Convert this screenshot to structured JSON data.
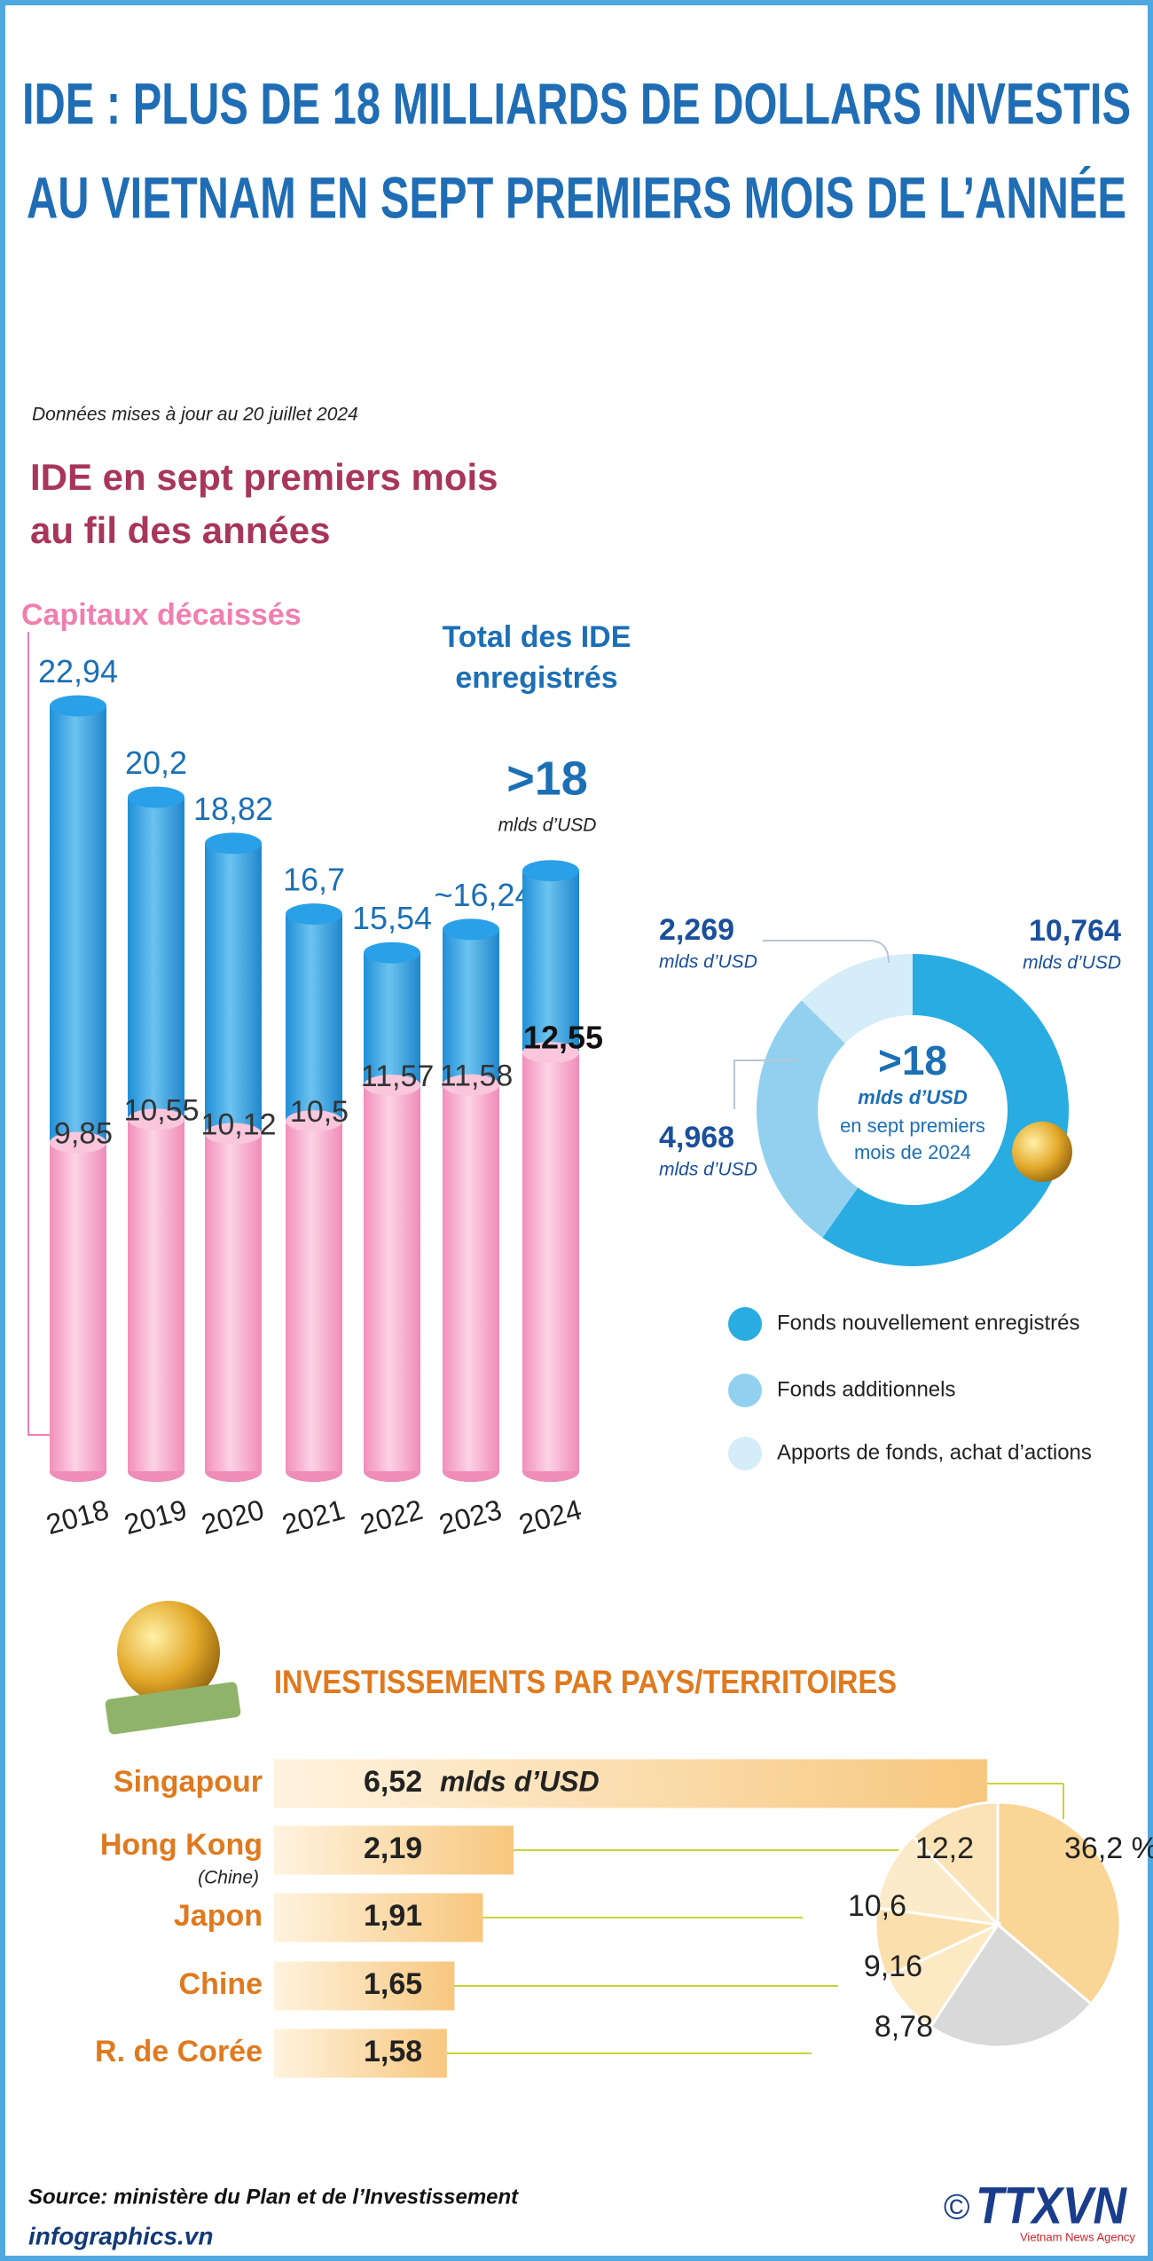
{
  "title": [
    "IDE : PLUS DE 18 MILLIARDS DE DOLLARS INVESTIS",
    "AU VIETNAM EN SEPT PREMIERS MOIS DE L’ANNÉE"
  ],
  "note": "Données mises à jour au 20 juillet 2024",
  "chart_data": [
    {
      "type": "cylinder-bar",
      "title": [
        "IDE en sept premiers mois",
        "au fil des années"
      ],
      "categories": [
        "2018",
        "2019",
        "2020",
        "2021",
        "2022",
        "2023",
        "2024"
      ],
      "series": [
        {
          "name": "Total des IDE enregistrés",
          "color": "#3aa6e0",
          "values": [
            22.94,
            20.2,
            18.82,
            16.7,
            15.54,
            16.24,
            18
          ],
          "value_labels": [
            "22,94",
            "20,2",
            "18,82",
            "16,7",
            "15,54",
            "~16,24",
            ">18"
          ]
        },
        {
          "name": "Capitaux décaissés",
          "color": "#f7b6d2",
          "values": [
            9.85,
            10.55,
            10.12,
            10.5,
            11.57,
            11.58,
            12.55
          ],
          "value_labels": [
            "9,85",
            "10,55",
            "10,12",
            "10,5",
            "11,57",
            "11,58",
            "12,55"
          ]
        }
      ],
      "annotation": "mlds d’USD"
    },
    {
      "type": "donut",
      "center_text": [
        ">18",
        "mlds d’USD",
        "en sept premiers",
        "mois de 2024"
      ],
      "categories": [
        "Fonds nouvellement enregistrés",
        "Fonds additionnels",
        "Apports de fonds, achat d’actions"
      ],
      "values": [
        10.764,
        4.968,
        2.269
      ],
      "value_labels": [
        "10,764",
        "4,968",
        "2,269"
      ],
      "unit": "mlds d’USD",
      "colors": [
        "#29ace2",
        "#92d0f0",
        "#d5ecf9"
      ]
    },
    {
      "type": "hbar",
      "title": "INVESTISSEMENTS PAR PAYS/TERRITOIRES",
      "categories": [
        "Singapour",
        "Hong Kong",
        "Japon",
        "Chine",
        "R. de Corée"
      ],
      "category_notes": [
        null,
        "(Chine)",
        null,
        null,
        null
      ],
      "values": [
        6.52,
        2.19,
        1.91,
        1.65,
        1.58
      ],
      "value_labels": [
        "6,52",
        "2,19",
        "1,91",
        "1,65",
        "1,58"
      ],
      "unit": "mlds d’USD",
      "color": "#f7c77e"
    },
    {
      "type": "pie",
      "values": [
        36.2,
        12.2,
        10.6,
        9.16,
        8.78,
        23.06
      ],
      "value_labels": [
        "36,2 %",
        "12,2",
        "10,6",
        "9,16",
        "8,78",
        null
      ],
      "colors": [
        "#f9d596",
        "#fbe3b8",
        "#fcebc9",
        "#fbe0ae",
        "#fde9c4",
        "#d9d9d9"
      ]
    }
  ],
  "source": "Source: ministère du Plan et de l’Investissement",
  "site": "infographics.vn",
  "copyright": "©",
  "logo": "TTXVN",
  "logo_sub": "Vietnam News Agency"
}
